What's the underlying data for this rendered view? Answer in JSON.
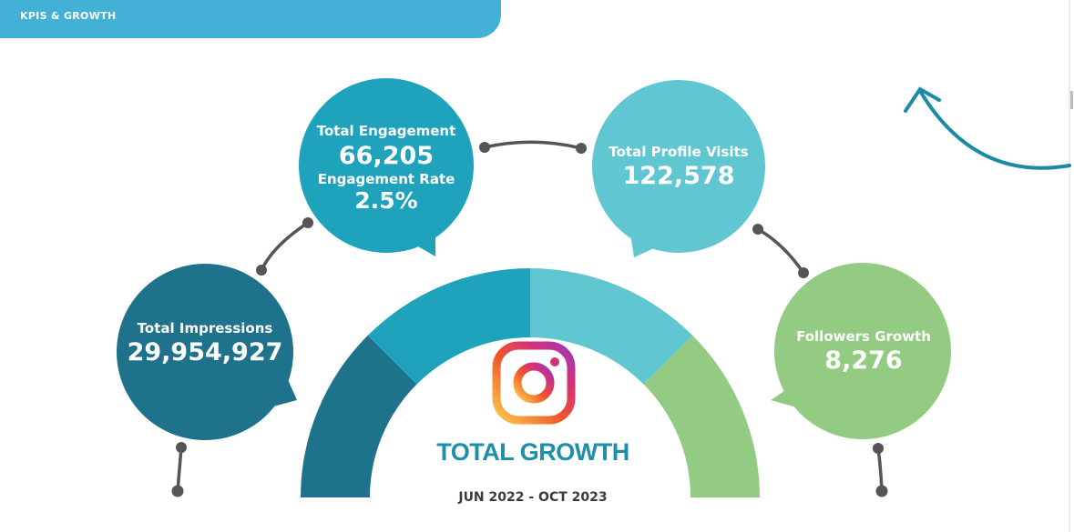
{
  "header": {
    "title": "KPIS & GROWTH"
  },
  "chart_data": {
    "type": "kpi-infographic",
    "title": "TOTAL GROWTH",
    "period": "JUN 2022  - OCT 2023",
    "gauge_segments": [
      {
        "name": "Total Impressions",
        "color": "#1f728b"
      },
      {
        "name": "Total Engagement",
        "color": "#1fa3bd"
      },
      {
        "name": "Total Profile Visits",
        "color": "#60c7d2"
      },
      {
        "name": "Followers Growth",
        "color": "#93cb82"
      }
    ],
    "kpis": {
      "impressions": {
        "label": "Total Impressions",
        "value": "29,954,927",
        "color": "#1f728b"
      },
      "engagement": {
        "label": "Total Engagement",
        "value": "66,205",
        "rate_label": "Engagement Rate",
        "rate_value": "2.5%",
        "color": "#1fa3bd"
      },
      "profile_visits": {
        "label": "Total Profile Visits",
        "value": "122,578",
        "color": "#60c7d2"
      },
      "followers": {
        "label": "Followers Growth",
        "value": "8,276",
        "color": "#93cb82"
      }
    }
  },
  "colors": {
    "accent": "#43b0d6",
    "connector": "#555555",
    "arrow": "#1a8aa6"
  },
  "icons": {
    "logo": "instagram-icon"
  }
}
